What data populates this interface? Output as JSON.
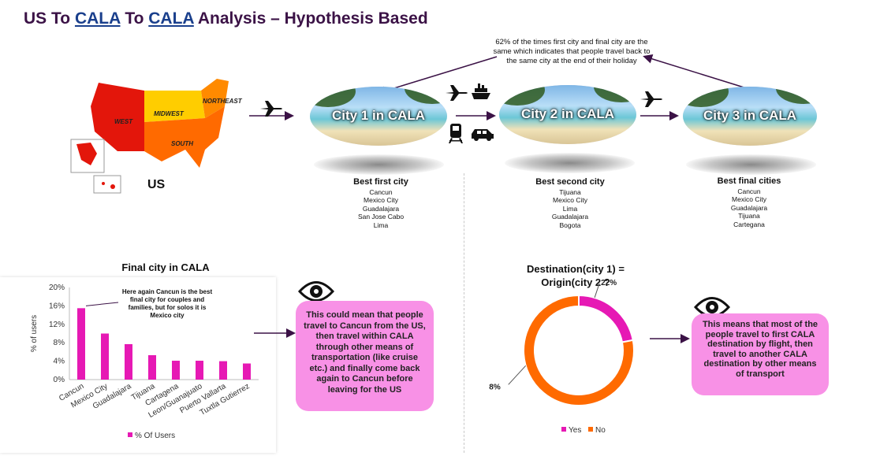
{
  "title_pre": "US To ",
  "title_u1": "CALA",
  "title_mid": " To ",
  "title_u2": "CALA",
  "title_post": " Analysis – Hypothesis Based",
  "top_note": "62% of the times first city and final city are the same which indicates that people travel back to the same city at the end of their holiday",
  "map": {
    "label": "US",
    "regions": [
      "WEST",
      "MIDWEST",
      "NORTHEAST",
      "SOUTH"
    ]
  },
  "cities": [
    {
      "label": "City 1 in CALA",
      "heading": "Best first city",
      "items": [
        "Cancun",
        "Mexico City",
        "Guadalajara",
        "San Jose Cabo",
        "Lima"
      ]
    },
    {
      "label": "City 2 in CALA",
      "heading": "Best second city",
      "items": [
        "Tijuana",
        "Mexico City",
        "Lima",
        "Guadalajara",
        "Bogota"
      ]
    },
    {
      "label": "City 3 in CALA",
      "heading": "Best final cities",
      "items": [
        "Cancun",
        "Mexico City",
        "Guadalajara",
        "Tijuana",
        "Cartegana"
      ]
    }
  ],
  "bar_annotation": "Here again Cancun is the best final city for couples and families, but for solos it is Mexico city",
  "left_box": "This could mean that people travel to Cancun from the US, then travel within CALA through other means of transportation (like cruise etc.) and finally come back again to Cancun before leaving for the US",
  "right_box": "This means that most of the people travel to first CALA destination by flight, then travel to another CALA destination by other means of transport",
  "colors": {
    "magenta": "#e619b4",
    "orange": "#ff6a00",
    "pink_box": "#f891e6",
    "title": "#3b1246"
  },
  "chart_data": [
    {
      "type": "bar",
      "title": "Final city in CALA",
      "ylabel": "% of users",
      "categories": [
        "Cancun",
        "Mexico City",
        "Guadalajara",
        "Tijuana",
        "Cartagena",
        "Leon/Guanajuato",
        "Puerto Vallarta",
        "Tuxtla Gutierrez"
      ],
      "series": [
        {
          "name": "% Of Users",
          "values": [
            15.5,
            10,
            7.7,
            5.3,
            4.1,
            4.1,
            4,
            3.5
          ]
        }
      ],
      "ylim": [
        0,
        20
      ],
      "yticks": [
        "0%",
        "4%",
        "8%",
        "12%",
        "16%",
        "20%"
      ],
      "grid": false,
      "legend": "bottom"
    },
    {
      "type": "pie",
      "title_line1": "Destination(city 1) =",
      "title_line2": "Origin(city 2 ?",
      "categories": [
        "Yes",
        "No"
      ],
      "values": [
        22,
        78
      ],
      "labels": [
        "22%",
        "78%"
      ],
      "legend": "bottom"
    }
  ]
}
